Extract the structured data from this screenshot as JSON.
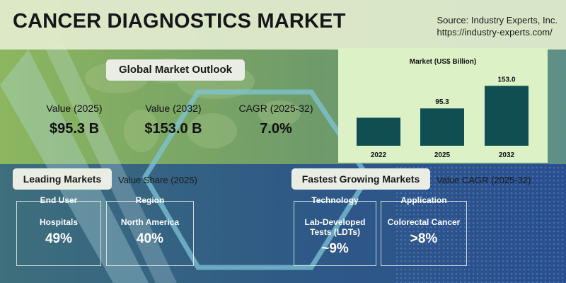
{
  "header": {
    "title": "CANCER DIAGNOSTICS MARKET",
    "source_line1": "Source: Industry Experts, Inc.",
    "source_line2": "https://industry-experts.com/"
  },
  "outlook": {
    "heading": "Global Market Outlook",
    "kpis": [
      {
        "label": "Value (2025)",
        "value": "$95.3 B"
      },
      {
        "label": "Value (2032)",
        "value": "$153.0 B"
      },
      {
        "label": "CAGR (2025-32)",
        "value": "7.0%"
      }
    ]
  },
  "chart_data": {
    "type": "bar",
    "title": "Market (US$ Billion)",
    "categories": [
      "2022",
      "2025",
      "2032"
    ],
    "values": [
      null,
      95.3,
      153.0
    ],
    "data_labels": [
      "",
      "95.3",
      "153.0"
    ],
    "estimated_values": [
      71.5,
      95.3,
      153.0
    ],
    "ylim": [
      0,
      180
    ],
    "grid": false,
    "bar_color": "#0f4f52"
  },
  "leading": {
    "heading": "Leading Markets",
    "subtitle": "Value Share (2025)",
    "cards": [
      {
        "header": "End User",
        "name": "Hospitals",
        "value": "49%"
      },
      {
        "header": "Region",
        "name": "North America",
        "value": "40%"
      }
    ]
  },
  "fastest": {
    "heading": "Fastest Growing Markets",
    "subtitle": "Value CAGR (2025-32)",
    "cards": [
      {
        "header": "Technology",
        "name_line1": "Lab-Developed",
        "name_line2": "Tests (LDTs)",
        "value": "~9%"
      },
      {
        "header": "Application",
        "name": "Colorectal Cancer",
        "value": ">8%"
      }
    ]
  },
  "colors": {
    "header_bg": "#e2ecce",
    "chart_bg": "#dcf1c6",
    "bar": "#0f4f52",
    "bottom_bg": "#2b4f8c"
  }
}
